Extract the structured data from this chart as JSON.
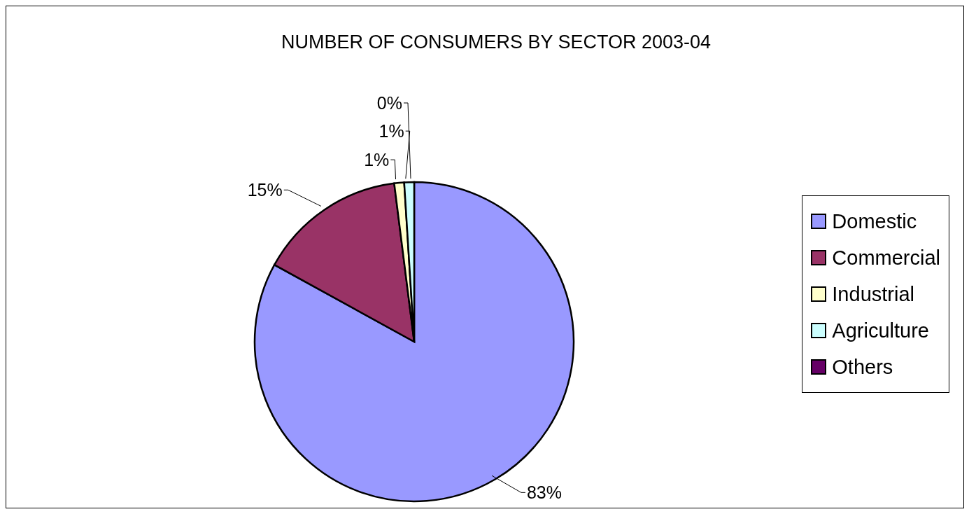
{
  "chart_data": {
    "type": "pie",
    "title": "NUMBER OF CONSUMERS BY SECTOR 2003-04",
    "categories": [
      "Domestic",
      "Commercial",
      "Industrial",
      "Agriculture",
      "Others"
    ],
    "values": [
      83,
      15,
      1,
      1,
      0
    ],
    "colors": [
      "#9999ff",
      "#993366",
      "#ffffcc",
      "#ccffff",
      "#660066"
    ],
    "value_labels": [
      "83%",
      "15%",
      "1%",
      "1%",
      "0%"
    ],
    "legend": "right"
  }
}
